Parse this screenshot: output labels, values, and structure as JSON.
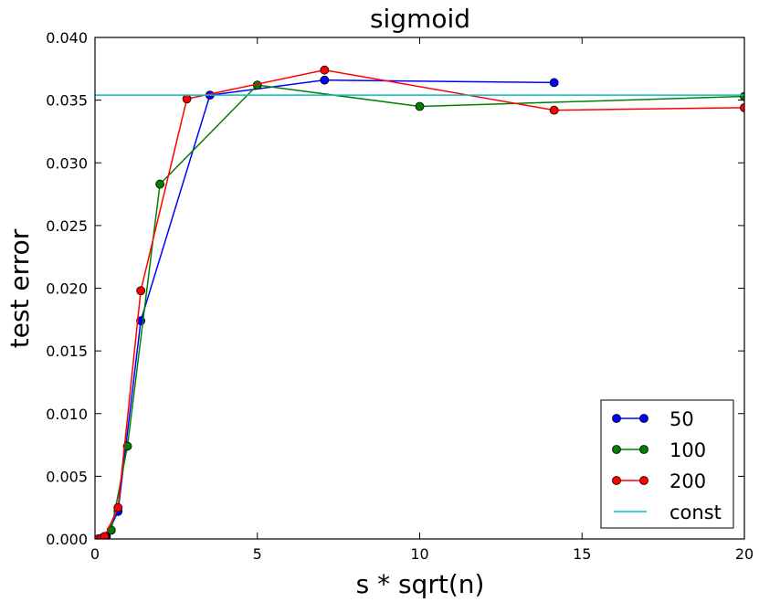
{
  "chart_data": {
    "type": "line",
    "title": "sigmoid",
    "xlabel": "s * sqrt(n)",
    "ylabel": "test error",
    "xlim": [
      0,
      20
    ],
    "ylim": [
      0,
      0.04
    ],
    "x_ticks": [
      0,
      5,
      10,
      15,
      20
    ],
    "x_tick_labels": [
      "0",
      "5",
      "10",
      "15",
      "20"
    ],
    "y_ticks": [
      0,
      0.005,
      0.01,
      0.015,
      0.02,
      0.025,
      0.03,
      0.035,
      0.04
    ],
    "y_tick_labels": [
      "0.000",
      "0.005",
      "0.010",
      "0.015",
      "0.020",
      "0.025",
      "0.030",
      "0.035",
      "0.040"
    ],
    "legend_position": "lower-right",
    "series": [
      {
        "name": "50",
        "color": "#0000ff",
        "marker": "circle",
        "x": [
          0.1,
          0.2,
          0.35,
          0.71,
          1.41,
          3.54,
          7.07,
          14.14
        ],
        "y": [
          0.0,
          5e-05,
          0.0002,
          0.0022,
          0.0174,
          0.0354,
          0.0366,
          0.0364
        ]
      },
      {
        "name": "100",
        "color": "#008000",
        "marker": "circle",
        "x": [
          0.1,
          0.2,
          0.3,
          0.5,
          1.0,
          2.0,
          5.0,
          10.0,
          20.0
        ],
        "y": [
          0.0,
          5e-05,
          0.0002,
          0.0007,
          0.0074,
          0.0283,
          0.0362,
          0.0345,
          0.0353
        ]
      },
      {
        "name": "200",
        "color": "#ff0000",
        "marker": "circle",
        "x": [
          0.1,
          0.2,
          0.3,
          0.71,
          1.41,
          2.83,
          7.07,
          14.14,
          20.0
        ],
        "y": [
          0.0,
          5e-05,
          0.0002,
          0.0025,
          0.0198,
          0.0351,
          0.0374,
          0.0342,
          0.0344
        ]
      },
      {
        "name": "const",
        "color": "#00bfbf",
        "marker": "none",
        "x": [
          0,
          20
        ],
        "y": [
          0.0354,
          0.0354
        ]
      }
    ]
  }
}
